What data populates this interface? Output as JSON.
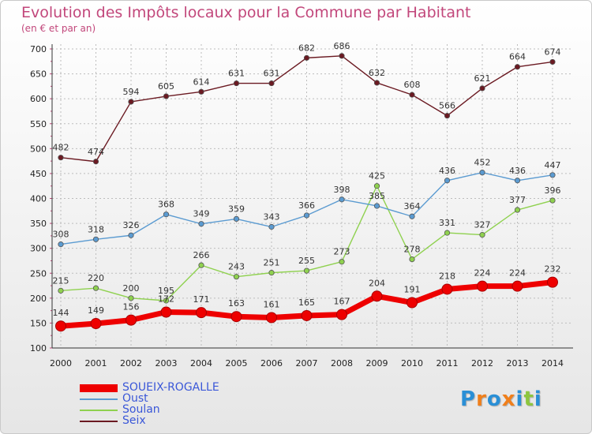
{
  "chart_data": {
    "type": "line",
    "title": "Evolution des Impôts locaux pour la Commune par Habitant",
    "subtitle": "(en € et par an)",
    "categories": [
      "2000",
      "2001",
      "2002",
      "2003",
      "2004",
      "2005",
      "2006",
      "2007",
      "2008",
      "2009",
      "2010",
      "2011",
      "2012",
      "2013",
      "2014"
    ],
    "y_ticks": [
      100,
      150,
      200,
      250,
      300,
      350,
      400,
      450,
      500,
      550,
      600,
      650,
      700
    ],
    "ylim": [
      100,
      700
    ],
    "grid": "horizontal dashed",
    "legend_placement": "bottom-left",
    "series": [
      {
        "name": "SOUEIX-ROGALLE",
        "color": "#ee0000",
        "values": [
          144,
          149,
          156,
          172,
          171,
          163,
          161,
          165,
          167,
          204,
          191,
          218,
          224,
          224,
          232
        ],
        "labels": [
          "144",
          "149",
          "156",
          "172",
          "171",
          "163",
          "161",
          "165",
          "167",
          "204",
          "191",
          "218",
          "224",
          "224",
          "232"
        ]
      },
      {
        "name": "Oust",
        "color": "#5b9bd1",
        "values": [
          308,
          318,
          326,
          368,
          349,
          359,
          343,
          366,
          398,
          385,
          364,
          436,
          452,
          436,
          447
        ],
        "labels": [
          "308",
          "318",
          "326",
          "368",
          "349",
          "359",
          "343",
          "366",
          "398",
          "385",
          "364",
          "436",
          "452",
          "436",
          "447"
        ]
      },
      {
        "name": "Soulan",
        "color": "#8fd14f",
        "values": [
          215,
          220,
          200,
          195,
          266,
          243,
          251,
          255,
          273,
          425,
          278,
          331,
          327,
          377,
          396
        ],
        "labels": [
          "215",
          "220",
          "200",
          "195",
          "266",
          "243",
          "251",
          "255",
          "273",
          "425",
          "278",
          "331",
          "327",
          "377",
          "396"
        ]
      },
      {
        "name": "Seix",
        "color": "#6b1a22",
        "values": [
          482,
          474,
          594,
          605,
          614,
          631,
          631,
          682,
          686,
          632,
          608,
          566,
          621,
          664,
          674
        ],
        "labels": [
          "482",
          "474",
          "594",
          "605",
          "614",
          "631",
          "631",
          "682",
          "686",
          "632",
          "608",
          "566",
          "621",
          "664",
          "674"
        ]
      }
    ]
  },
  "logo": {
    "text": "Proxiti",
    "letters": [
      "P",
      "r",
      "o",
      "x",
      "i",
      "t",
      "i"
    ],
    "colors": [
      "#2a8fd6",
      "#f07f1b",
      "#2a8fd6",
      "#f07f1b",
      "#2a8fd6",
      "#8dc63f",
      "#2a8fd6"
    ]
  }
}
